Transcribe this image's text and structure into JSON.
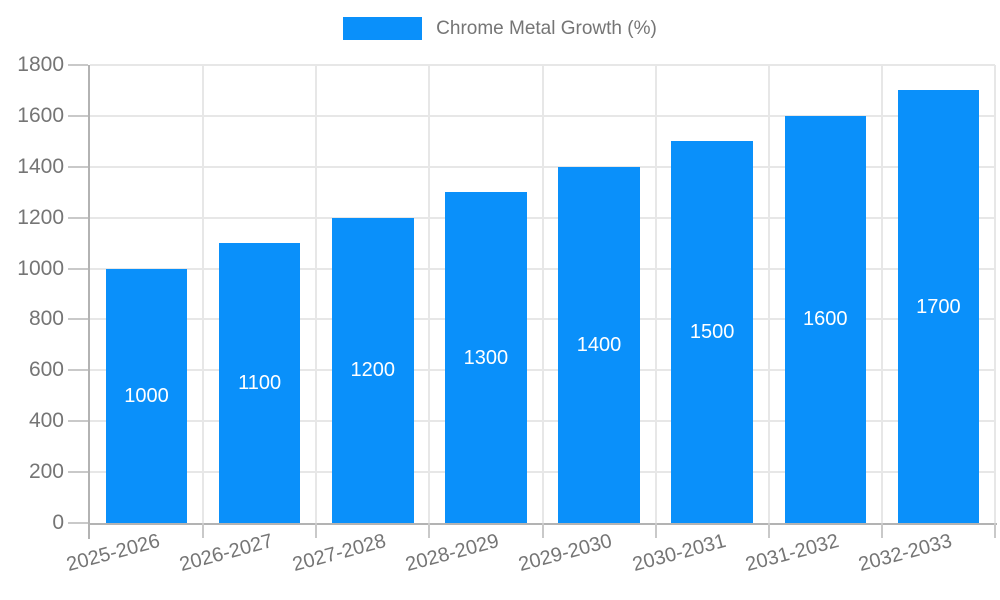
{
  "chart_data": {
    "type": "bar",
    "title": "",
    "legend": "Chrome Metal Growth (%)",
    "legend_position": "top-center",
    "categories": [
      "2025-2026",
      "2026-2027",
      "2027-2028",
      "2028-2029",
      "2029-2030",
      "2030-2031",
      "2031-2032",
      "2032-2033"
    ],
    "values": [
      1000,
      1100,
      1200,
      1300,
      1400,
      1500,
      1600,
      1700
    ],
    "value_labels": [
      "1000",
      "1100",
      "1200",
      "1300",
      "1400",
      "1500",
      "1600",
      "1700"
    ],
    "xlabel": "",
    "ylabel": "",
    "ylim": [
      0,
      1800
    ],
    "yticks": [
      0,
      200,
      400,
      600,
      800,
      1000,
      1200,
      1400,
      1600,
      1800
    ],
    "grid": true,
    "x_label_rotation_deg": -15,
    "colors": {
      "bar": "#0A90FA",
      "axis_text": "#757575",
      "legend_text": "#757575",
      "value_label": "#FFFFFF",
      "gridline": "#E7E7E7",
      "tick": "#C9C9C9",
      "axis_line": "#B3B3B3",
      "background": "#FFFFFF"
    }
  }
}
